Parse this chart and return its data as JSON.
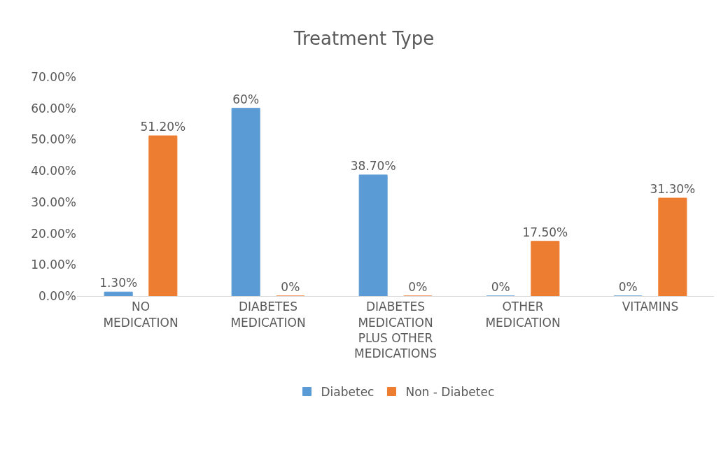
{
  "chart_data": {
    "type": "bar",
    "title": "Treatment Type",
    "categories": [
      "NO MEDICATION",
      "DIABETES MEDICATION",
      "DIABETES MEDICATION PLUS OTHER MEDICATIONS",
      "OTHER MEDICATION",
      "VITAMINS"
    ],
    "series": [
      {
        "name": "Diabetec",
        "color": "#5b9bd5",
        "values": [
          1.3,
          60,
          38.7,
          0,
          0
        ],
        "value_labels": [
          "1.30%",
          "60%",
          "38.70%",
          "0%",
          "0%"
        ]
      },
      {
        "name": "Non - Diabetec",
        "color": "#ed7d31",
        "values": [
          51.2,
          0,
          0,
          17.5,
          31.3
        ],
        "value_labels": [
          "51.20%",
          "0%",
          "0%",
          "17.50%",
          "31.30%"
        ]
      }
    ],
    "ylim": [
      0,
      70
    ],
    "yticks": [
      {
        "value": 0,
        "label": "0.00%"
      },
      {
        "value": 10,
        "label": "10.00%"
      },
      {
        "value": 20,
        "label": "20.00%"
      },
      {
        "value": 30,
        "label": "30.00%"
      },
      {
        "value": 40,
        "label": "40.00%"
      },
      {
        "value": 50,
        "label": "50.00%"
      },
      {
        "value": 60,
        "label": "60.00%"
      },
      {
        "value": 70,
        "label": "70.00%"
      }
    ],
    "grid": false,
    "legend": "bottom"
  }
}
